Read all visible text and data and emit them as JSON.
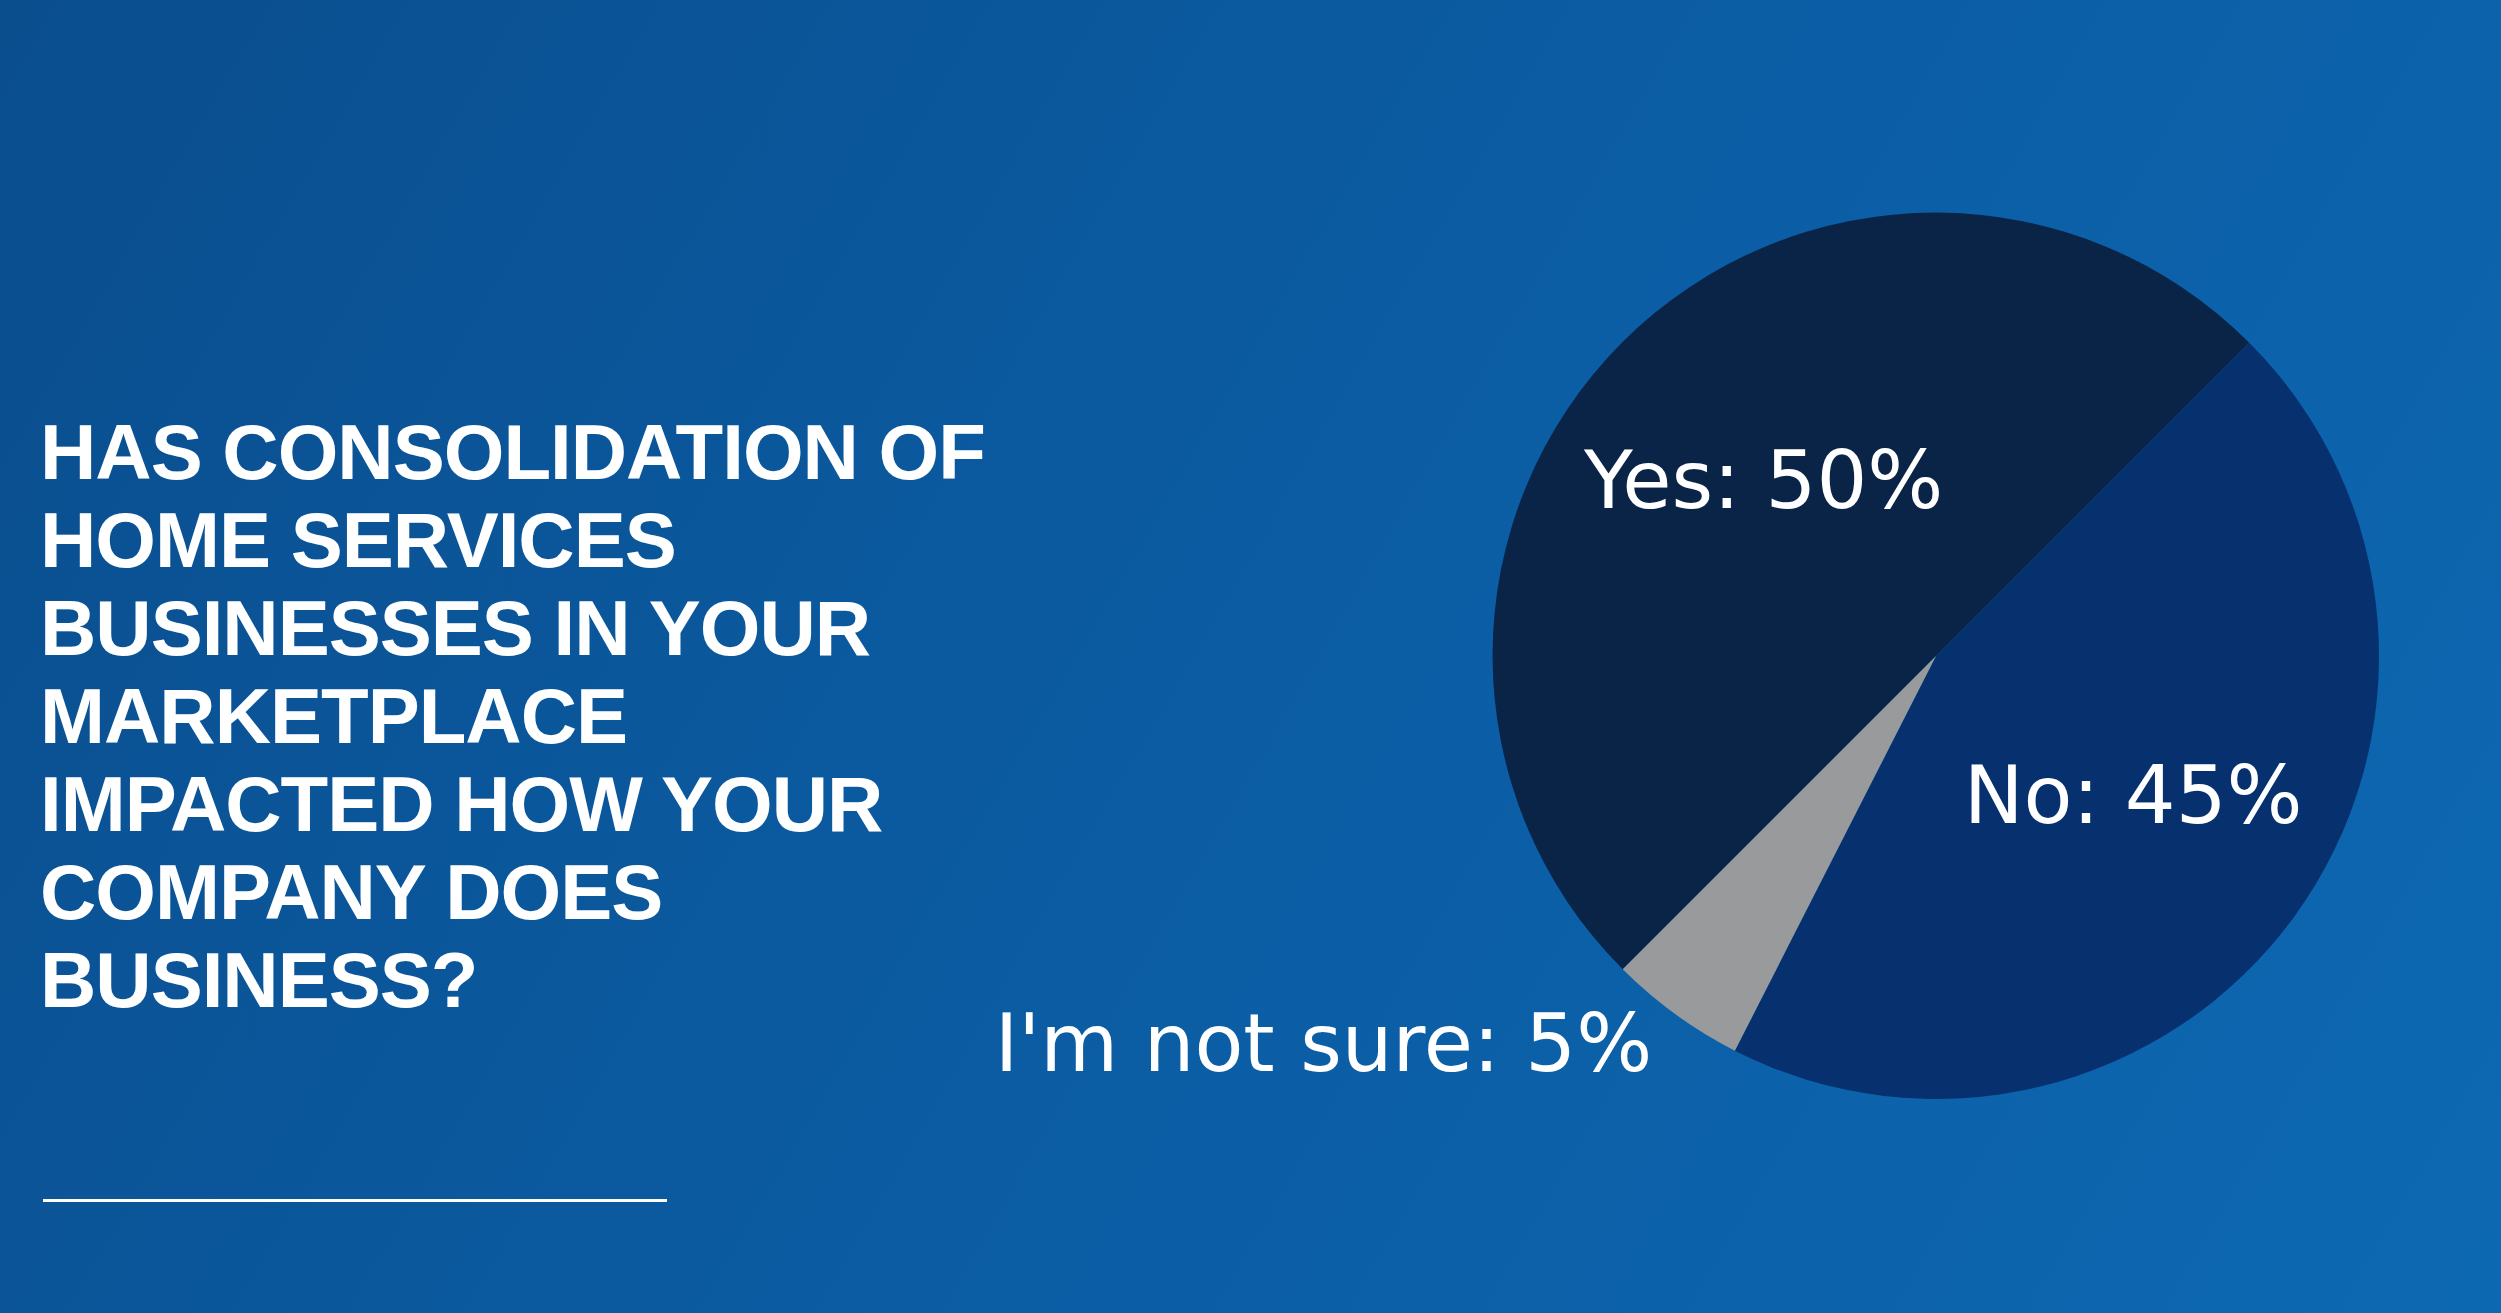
{
  "chart_data": {
    "type": "pie",
    "title": "HAS CONSOLIDATION OF HOME SERVICES BUSINESSES IN YOUR MARKETPLACE IMPACTED HOW YOUR COMPANY DOES BUSINESS?",
    "categories": [
      "Yes",
      "No",
      "I'm not sure"
    ],
    "values": [
      50,
      45,
      5
    ],
    "colors": [
      "#0a2448",
      "#06306e",
      "#999a9c"
    ],
    "value_labels": [
      "50%",
      "45%",
      "5%"
    ]
  }
}
